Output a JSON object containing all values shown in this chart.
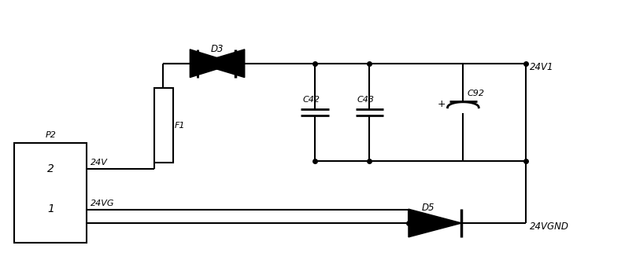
{
  "bg_color": "#ffffff",
  "fig_width": 7.94,
  "fig_height": 3.31,
  "dpi": 100,
  "p2_label": "P2",
  "pin2_label": "2",
  "pin1_label": "1",
  "v24_label": "24V",
  "v24g_label": "24VG",
  "f1_label": "F1",
  "d3_label": "D3",
  "d5_label": "D5",
  "c42_label": "C42",
  "c43_label": "C43",
  "c92_label": "C92",
  "out1_label": "24V1",
  "gnd_label": "24VGND"
}
